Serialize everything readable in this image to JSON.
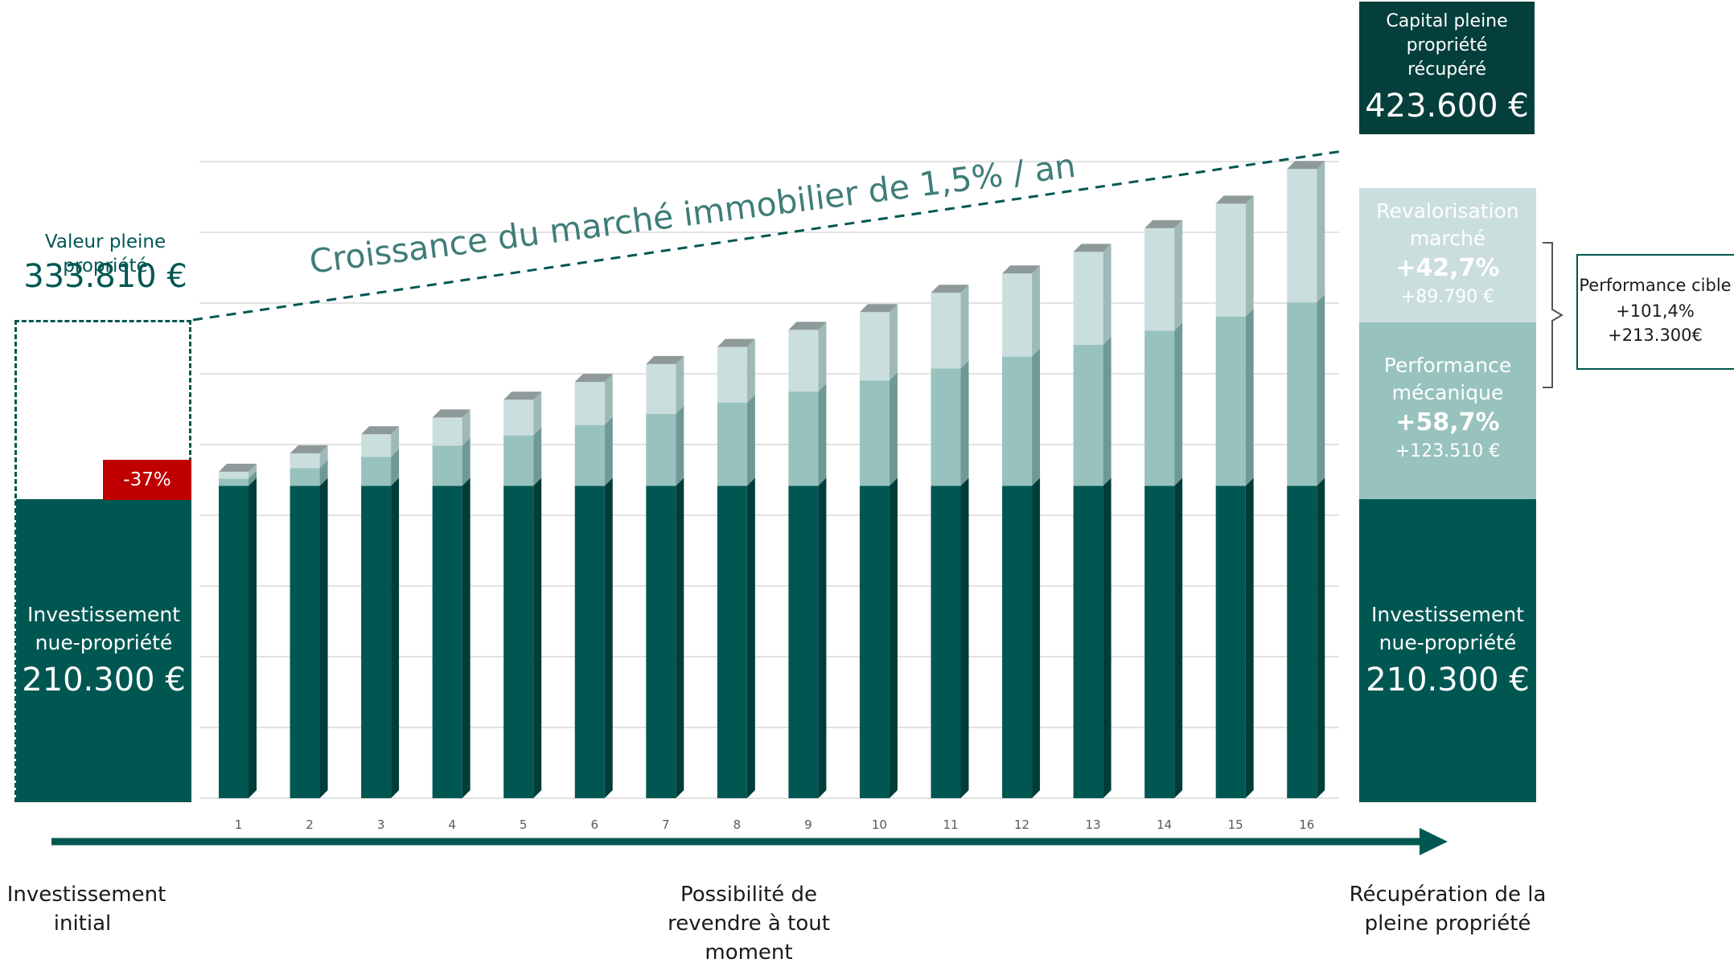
{
  "colors": {
    "base": "#005752",
    "mechanical": "#98c2bd",
    "market": "#cadedd",
    "top_box": "#043f3b",
    "discount_badge": "#c00000",
    "axis_text": "#595959",
    "grid": "#d9d9d9"
  },
  "left_panel": {
    "full_value_label": "Valeur pleine propriété",
    "full_value_amount": "333.810 €",
    "discount_badge": "-37%",
    "invest_label_line1": "Investissement",
    "invest_label_line2": "nue-propriété",
    "invest_amount": "210.300 €"
  },
  "growth_annotation": "Croissance du marché immobilier de 1,5% / an",
  "right_panel": {
    "capital_label_line1": "Capital pleine",
    "capital_label_line2": "propriété",
    "capital_label_line3": "récupéré",
    "capital_amount": "423.600 €",
    "market_label_line1": "Revalorisation",
    "market_label_line2": "marché",
    "market_pct": "+42,7%",
    "market_amount": "+89.790 €",
    "mech_label_line1": "Performance",
    "mech_label_line2": "mécanique",
    "mech_pct": "+58,7%",
    "mech_amount": "+123.510 €",
    "invest_label_line1": "Investissement",
    "invest_label_line2": "nue-propriété",
    "invest_amount": "210.300 €"
  },
  "target_box": {
    "line1": "Performance cible",
    "line2": "+101,4%",
    "line3": "+213.300€"
  },
  "timeline": {
    "start_line1": "Investissement",
    "start_line2": "initial",
    "middle_line1": "Possibilité de",
    "middle_line2": "revendre à tout",
    "middle_line3": "moment",
    "end_line1": "Récupération de la",
    "end_line2": "pleine propriété"
  },
  "chart_data": {
    "type": "bar",
    "stacked": true,
    "x_label": "",
    "y_label": "",
    "categories": [
      "1",
      "2",
      "3",
      "4",
      "5",
      "6",
      "7",
      "8",
      "9",
      "10",
      "11",
      "12",
      "13",
      "14",
      "15",
      "16"
    ],
    "series": [
      {
        "values": [
          210300,
          210300,
          210300,
          210300,
          210300,
          210300,
          210300,
          210300,
          210300,
          210300,
          210300,
          210300,
          210300,
          210300,
          210300,
          210300
        ]
      },
      {
        "values": [
          4800,
          12000,
          19500,
          27000,
          34000,
          41000,
          48500,
          56000,
          63500,
          71000,
          79000,
          87000,
          95000,
          104500,
          114000,
          123510
        ]
      },
      {
        "values": [
          4700,
          9900,
          15200,
          19000,
          24000,
          29000,
          33500,
          37500,
          41500,
          46000,
          51000,
          56000,
          62500,
          69000,
          76000,
          89790
        ]
      }
    ],
    "ylim": [
      0,
      440000
    ],
    "grid": true,
    "legend": "none"
  }
}
